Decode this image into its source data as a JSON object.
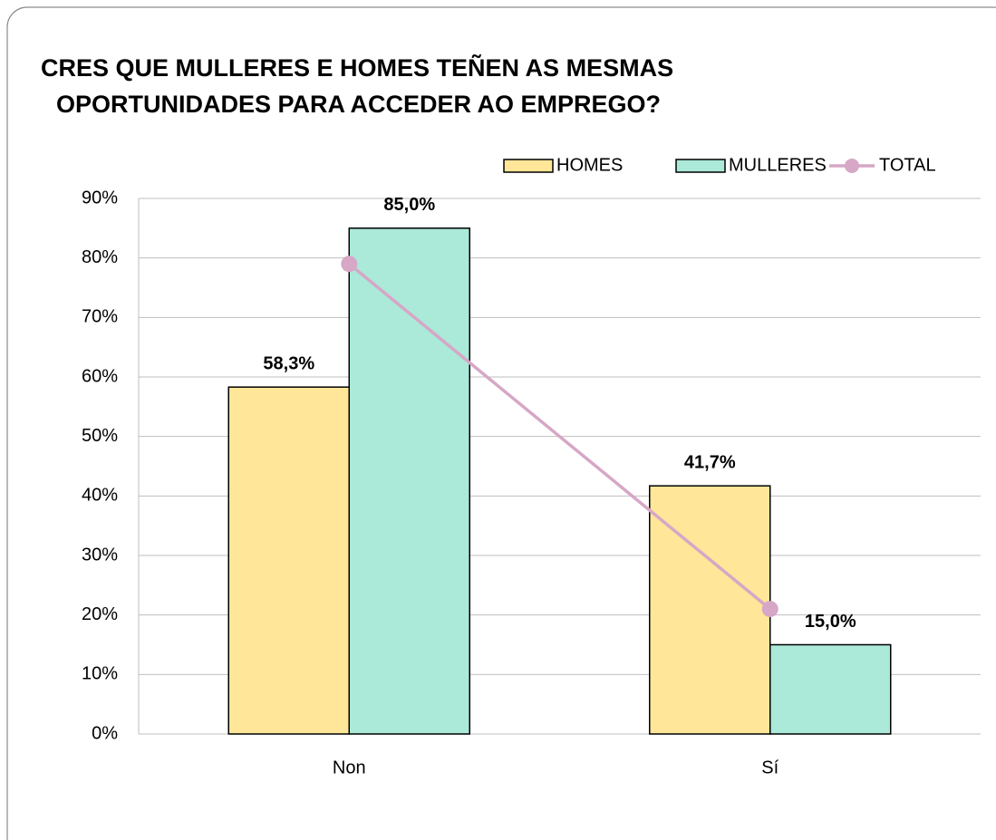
{
  "chart_data": {
    "type": "bar",
    "title": [
      "CRES QUE MULLERES E HOMES TEÑEN AS MESMAS",
      "OPORTUNIDADES PARA ACCEDER AO EMPREGO?"
    ],
    "categories": [
      "Non",
      "Sí"
    ],
    "series": [
      {
        "name": "HOMES",
        "type": "bar",
        "color": "#ffe699",
        "values": [
          58.3,
          41.7
        ],
        "value_labels": [
          "58,3%",
          "41,7%"
        ]
      },
      {
        "name": "MULLERES",
        "type": "bar",
        "color": "#abe9d9",
        "values": [
          85.0,
          15.0
        ],
        "value_labels": [
          "85,0%",
          "15,0%"
        ]
      },
      {
        "name": "TOTAL",
        "type": "line",
        "color": "#d6a7c6",
        "values": [
          79,
          21
        ]
      }
    ],
    "ylim": [
      0,
      90
    ],
    "yticks": [
      {
        "value": 0,
        "label": "0%"
      },
      {
        "value": 10,
        "label": "10%"
      },
      {
        "value": 20,
        "label": "20%"
      },
      {
        "value": 30,
        "label": "30%"
      },
      {
        "value": 40,
        "label": "40%"
      },
      {
        "value": 50,
        "label": "50%"
      },
      {
        "value": 60,
        "label": "60%"
      },
      {
        "value": 70,
        "label": "70%"
      },
      {
        "value": 80,
        "label": "80%"
      },
      {
        "value": 90,
        "label": "90%"
      }
    ],
    "grid": true,
    "legend": "top-right"
  }
}
